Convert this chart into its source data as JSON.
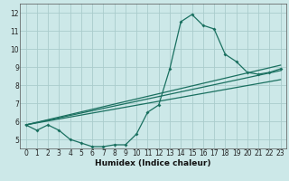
{
  "title": "",
  "xlabel": "Humidex (Indice chaleur)",
  "bg_color": "#cce8e8",
  "grid_color": "#aacccc",
  "line_color": "#1a7060",
  "xlim": [
    -0.5,
    23.5
  ],
  "ylim": [
    4.5,
    12.5
  ],
  "xticks": [
    0,
    1,
    2,
    3,
    4,
    5,
    6,
    7,
    8,
    9,
    10,
    11,
    12,
    13,
    14,
    15,
    16,
    17,
    18,
    19,
    20,
    21,
    22,
    23
  ],
  "yticks": [
    5,
    6,
    7,
    8,
    9,
    10,
    11,
    12
  ],
  "line1_x": [
    0,
    1,
    2,
    3,
    4,
    5,
    6,
    7,
    8,
    9,
    10,
    11,
    12,
    13,
    14,
    15,
    16,
    17,
    18,
    19,
    20,
    21,
    22,
    23
  ],
  "line1_y": [
    5.8,
    5.5,
    5.8,
    5.5,
    5.0,
    4.8,
    4.6,
    4.6,
    4.7,
    4.7,
    5.3,
    6.5,
    6.9,
    8.9,
    11.5,
    11.9,
    11.3,
    11.1,
    9.7,
    9.3,
    8.7,
    8.6,
    8.7,
    8.9
  ],
  "line2_x": [
    0,
    23
  ],
  "line2_y": [
    5.8,
    8.8
  ],
  "line3_x": [
    0,
    23
  ],
  "line3_y": [
    5.8,
    8.3
  ],
  "line4_x": [
    0,
    23
  ],
  "line4_y": [
    5.8,
    9.1
  ]
}
